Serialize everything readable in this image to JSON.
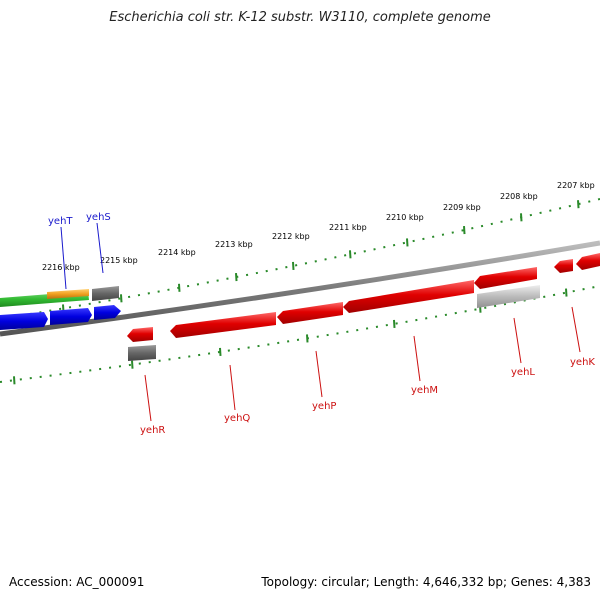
{
  "title": "Escherichia coli str. K-12 substr. W3110, complete genome",
  "footer": {
    "accession": "Accession: AC_000091",
    "summary": "Topology: circular; Length: 4,646,332 bp; Genes: 4,383"
  },
  "colors": {
    "backbone": "#8a8a8a",
    "ruler": "#2a8a2a",
    "forward_label": "#1a1acc",
    "reverse_label": "#cc1111",
    "reverse_gene": "#e00000",
    "forward_gene": "#0000e0",
    "green_feature": "#33bb33",
    "orange_feature": "#f0a020",
    "gray_feature": "#666666",
    "light_gray_feature": "#bbbbbb"
  },
  "outer_ruler": {
    "ticks": [
      "2216 kbp",
      "2215 kbp",
      "2214 kbp",
      "2213 kbp",
      "2212 kbp",
      "2211 kbp",
      "2210 kbp",
      "2209 kbp",
      "2208 kbp",
      "2207 kbp"
    ]
  },
  "forward_genes": [
    {
      "name": "yehT",
      "label_color": "forward_label"
    },
    {
      "name": "yehS",
      "label_color": "forward_label"
    }
  ],
  "reverse_genes": [
    {
      "name": "yehR"
    },
    {
      "name": "yehQ"
    },
    {
      "name": "yehP"
    },
    {
      "name": "yehM"
    },
    {
      "name": "yehL"
    },
    {
      "name": "yehK"
    }
  ]
}
